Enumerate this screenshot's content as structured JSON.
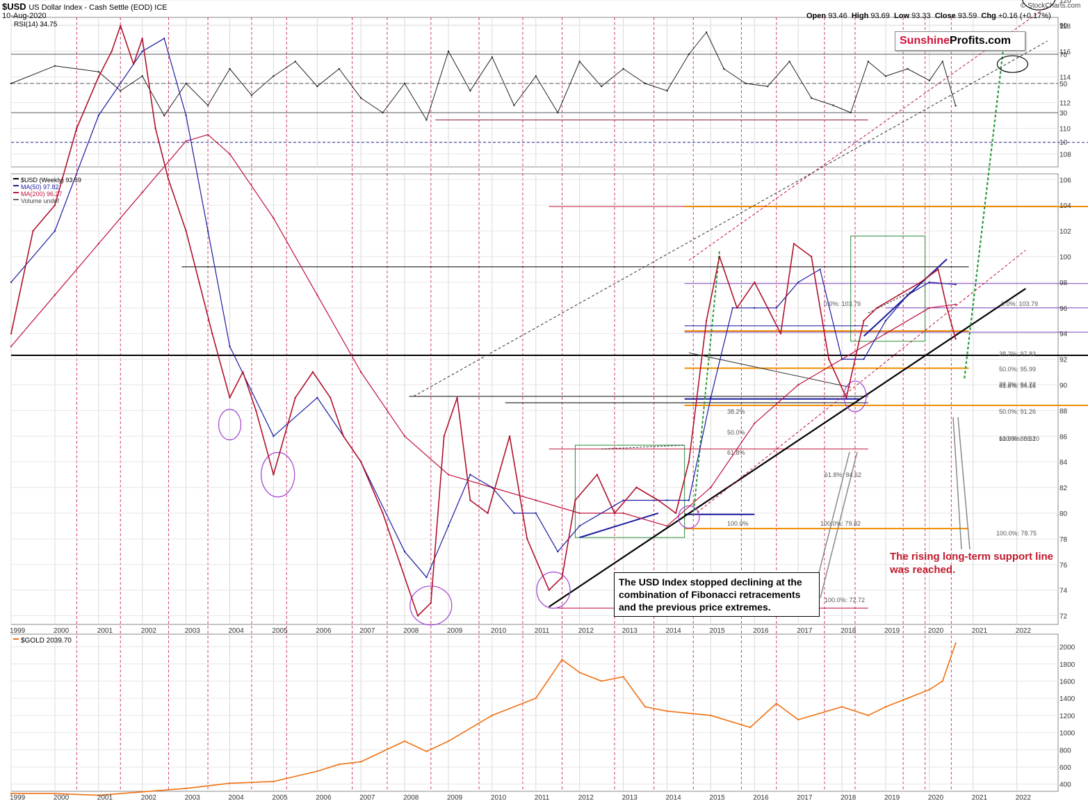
{
  "header": {
    "symbol": "$USD",
    "name": "US Dollar Index - Cash Settle (EOD) ICE",
    "date": "10-Aug-2020",
    "open_label": "Open",
    "open": "93.46",
    "high_label": "High",
    "high": "93.69",
    "low_label": "Low",
    "low": "93.33",
    "close_label": "Close",
    "close": "93.59",
    "chg_label": "Chg",
    "chg": "+0.16 (+0.17%)",
    "copyright": "© StockCharts.com"
  },
  "brand": {
    "part1": "Sunshine",
    "part2": "Profits.com"
  },
  "rsi_panel": {
    "label": "RSI(14) 34.75",
    "ticks": [
      "90",
      "70",
      "50",
      "30",
      "10"
    ]
  },
  "price_panel": {
    "legend": [
      "$USD (Weekly) 93.59",
      "MA(50) 97.82",
      "MA(200) 96.27",
      "Volume undef"
    ],
    "legend_colors": [
      "#000000",
      "#1a1aa0",
      "#c0103a",
      "#666666"
    ],
    "ticks": [
      "120",
      "118",
      "116",
      "114",
      "112",
      "110",
      "108",
      "106",
      "104",
      "102",
      "100",
      "98",
      "96",
      "94",
      "92",
      "90",
      "88",
      "86",
      "84",
      "82",
      "80",
      "78",
      "76",
      "74",
      "72"
    ],
    "fib_labels": [
      "0.0%: 103.79",
      "0.0%: 103.79",
      "38.2%: 97.83",
      "50.0%: 95.99",
      "61.8%: 94.16",
      "38.2%: 94.22",
      "50.0%: 91.26",
      "61.8%: 88.31",
      "100.0%: 88.20",
      "61.8%: 84.62",
      "100.0%: 79.82",
      "100.0%: 78.75",
      "100.0%: 72.72",
      "50.0%",
      "61.8%",
      "38.2%",
      "100.0%"
    ]
  },
  "gold_panel": {
    "label": "$GOLD 2039.70",
    "ticks": [
      "2000",
      "1800",
      "1600",
      "1400",
      "1200",
      "1000",
      "800",
      "600",
      "400"
    ]
  },
  "x_axis": {
    "years": [
      "1999",
      "2000",
      "2001",
      "2002",
      "2003",
      "2004",
      "2005",
      "2006",
      "2007",
      "2008",
      "2009",
      "2010",
      "2011",
      "2012",
      "2013",
      "2014",
      "2015",
      "2016",
      "2017",
      "2018",
      "2019",
      "2020",
      "2021",
      "2022"
    ]
  },
  "annotations": {
    "main": "The USD Index stopped declining at the combination of Fibonacci retracements and the previous price extremes.",
    "red": "The rising long-term support line was reached."
  },
  "chart_data": [
    {
      "type": "line",
      "title": "RSI(14) 34.75",
      "ylim": [
        0,
        100
      ],
      "reference_lines": [
        30,
        50,
        70
      ],
      "x": [
        1999.0,
        2000.0,
        2001.0,
        2001.5,
        2002.0,
        2002.5,
        2003.0,
        2003.5,
        2004.0,
        2004.5,
        2005.0,
        2005.5,
        2006.0,
        2006.5,
        2007.0,
        2007.5,
        2008.0,
        2008.5,
        2009.0,
        2009.5,
        2010.0,
        2010.5,
        2011.0,
        2011.5,
        2012.0,
        2012.5,
        2013.0,
        2013.5,
        2014.0,
        2014.5,
        2014.9,
        2015.3,
        2015.8,
        2016.3,
        2016.8,
        2017.3,
        2017.8,
        2018.2,
        2018.6,
        2019.0,
        2019.5,
        2020.0,
        2020.3,
        2020.6
      ],
      "values": [
        50,
        62,
        58,
        45,
        55,
        28,
        50,
        35,
        60,
        42,
        55,
        65,
        48,
        60,
        40,
        30,
        50,
        25,
        72,
        45,
        68,
        35,
        55,
        30,
        65,
        48,
        60,
        50,
        45,
        70,
        85,
        60,
        50,
        48,
        65,
        40,
        35,
        30,
        65,
        55,
        60,
        52,
        65,
        34.75
      ]
    },
    {
      "type": "line",
      "title": "$USD (Weekly) 93.59",
      "ylim": [
        71,
        121
      ],
      "x": [
        1999.0,
        1999.5,
        2000.0,
        2000.5,
        2001.0,
        2001.3,
        2001.5,
        2001.8,
        2002.0,
        2002.3,
        2002.6,
        2003.0,
        2003.3,
        2003.6,
        2004.0,
        2004.3,
        2004.6,
        2005.0,
        2005.5,
        2005.9,
        2006.3,
        2006.6,
        2007.0,
        2007.5,
        2007.9,
        2008.3,
        2008.6,
        2008.9,
        2009.2,
        2009.5,
        2009.9,
        2010.4,
        2010.8,
        2011.3,
        2011.6,
        2011.9,
        2012.4,
        2012.8,
        2013.3,
        2013.8,
        2014.2,
        2014.5,
        2014.9,
        2015.2,
        2015.6,
        2016.0,
        2016.3,
        2016.6,
        2016.9,
        2017.3,
        2017.7,
        2018.1,
        2018.5,
        2018.8,
        2019.3,
        2019.8,
        2020.2,
        2020.4,
        2020.6
      ],
      "values": [
        94,
        102,
        104,
        110,
        114,
        116,
        118,
        115,
        117,
        110,
        106,
        102,
        98,
        94,
        89,
        91,
        88,
        83,
        89,
        91,
        89,
        86,
        84,
        80,
        76,
        72,
        73,
        86,
        89,
        81,
        80,
        86,
        78,
        74,
        75,
        81,
        83,
        80,
        82,
        81,
        80,
        84,
        95,
        100,
        96,
        98,
        96,
        94,
        101,
        100,
        92,
        89,
        95,
        96,
        97,
        98,
        99,
        96,
        93.59
      ]
    },
    {
      "type": "line",
      "title": "MA(50) 97.82",
      "x": [
        1999.0,
        2000.0,
        2001.0,
        2002.0,
        2002.5,
        2003.0,
        2003.5,
        2004.0,
        2005.0,
        2006.0,
        2007.0,
        2008.0,
        2008.5,
        2009.0,
        2009.5,
        2010.0,
        2010.5,
        2011.0,
        2011.5,
        2012.0,
        2013.0,
        2014.0,
        2014.5,
        2015.0,
        2015.5,
        2016.0,
        2016.5,
        2017.0,
        2017.5,
        2018.0,
        2018.5,
        2019.0,
        2019.5,
        2020.0,
        2020.6
      ],
      "values": [
        98,
        102,
        111,
        116,
        117,
        111,
        102,
        93,
        86,
        89,
        84,
        77,
        75,
        79,
        83,
        82,
        80,
        80,
        77,
        79,
        81,
        81,
        81,
        89,
        96,
        96,
        96,
        98,
        99,
        92,
        92,
        95,
        97,
        98,
        97.82
      ]
    },
    {
      "type": "line",
      "title": "MA(200) 96.27",
      "x": [
        1999.0,
        2000.0,
        2001.0,
        2002.0,
        2003.0,
        2003.5,
        2004.0,
        2005.0,
        2006.0,
        2007.0,
        2008.0,
        2009.0,
        2010.0,
        2011.0,
        2012.0,
        2013.0,
        2014.0,
        2015.0,
        2016.0,
        2017.0,
        2018.0,
        2019.0,
        2020.0,
        2020.6
      ],
      "values": [
        93,
        97,
        101,
        105,
        109,
        109.5,
        108,
        103,
        97,
        91,
        86,
        83,
        82,
        81,
        80,
        80,
        79,
        82,
        87,
        90,
        92,
        94,
        96,
        96.27
      ]
    },
    {
      "type": "line",
      "title": "$GOLD 2039.70",
      "ylim": [
        300,
        2100
      ],
      "x": [
        1999.0,
        2000.0,
        2001.0,
        2002.0,
        2003.0,
        2004.0,
        2005.0,
        2006.0,
        2006.5,
        2007.0,
        2008.0,
        2008.5,
        2009.0,
        2010.0,
        2011.0,
        2011.6,
        2012.0,
        2012.5,
        2013.0,
        2013.5,
        2014.0,
        2015.0,
        2015.9,
        2016.5,
        2017.0,
        2018.0,
        2018.6,
        2019.0,
        2019.5,
        2020.0,
        2020.3,
        2020.6
      ],
      "values": [
        290,
        290,
        270,
        310,
        350,
        410,
        430,
        550,
        630,
        660,
        900,
        780,
        900,
        1200,
        1400,
        1850,
        1700,
        1600,
        1650,
        1300,
        1250,
        1200,
        1060,
        1340,
        1150,
        1300,
        1200,
        1300,
        1400,
        1500,
        1600,
        2039.7
      ]
    }
  ]
}
